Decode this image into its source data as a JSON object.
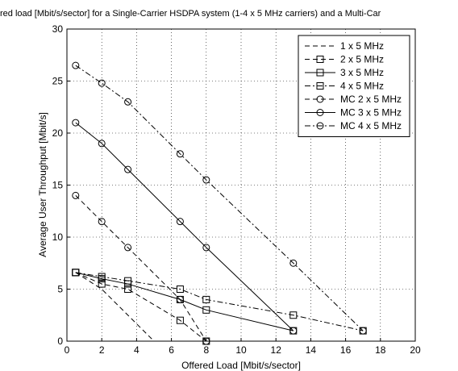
{
  "chart_data": {
    "type": "line",
    "title": "red load [Mbit/s/sector] for a Single-Carrier HSDPA system (1-4 x 5 MHz carriers) and a Multi-Car",
    "xlabel": "Offered Load [Mbit/s/sector]",
    "ylabel": "Average User Throughput [Mbit/s]",
    "xlim": [
      0,
      20
    ],
    "ylim": [
      0,
      30
    ],
    "xticks": [
      "0",
      "2",
      "4",
      "6",
      "8",
      "10",
      "12",
      "14",
      "16",
      "18",
      "20"
    ],
    "yticks": [
      "0",
      "5",
      "10",
      "15",
      "20",
      "25",
      "30"
    ],
    "grid": true,
    "legend_position": "top-right",
    "series": [
      {
        "name": "1 x 5 MHz",
        "dash": "dashed",
        "marker": "none",
        "x": [
          0.5,
          2,
          3.5,
          5
        ],
        "y": [
          6.6,
          5.0,
          2.5,
          0
        ]
      },
      {
        "name": "2 x 5 MHz",
        "dash": "dashed",
        "marker": "square",
        "x": [
          0.5,
          2,
          3.5,
          6.5,
          8
        ],
        "y": [
          6.6,
          5.5,
          5.0,
          2.0,
          0
        ]
      },
      {
        "name": "3 x 5 MHz",
        "dash": "solid",
        "marker": "square",
        "x": [
          0.5,
          2,
          3.5,
          6.5,
          8,
          13
        ],
        "y": [
          6.6,
          6.0,
          5.5,
          4.0,
          3.0,
          1.0
        ]
      },
      {
        "name": "4 x 5 MHz",
        "dash": "dashdot",
        "marker": "square",
        "x": [
          0.5,
          2,
          3.5,
          6.5,
          8,
          13,
          17
        ],
        "y": [
          6.6,
          6.2,
          5.8,
          5.0,
          4.0,
          2.5,
          1.0
        ]
      },
      {
        "name": "MC 2 x 5 MHz",
        "dash": "dashed",
        "marker": "circle",
        "x": [
          0.5,
          2,
          3.5,
          6.5,
          8
        ],
        "y": [
          14.0,
          11.5,
          9.0,
          4.0,
          0
        ]
      },
      {
        "name": "MC 3 x 5 MHz",
        "dash": "solid",
        "marker": "circle",
        "x": [
          0.5,
          2,
          3.5,
          6.5,
          8,
          13
        ],
        "y": [
          21.0,
          19.0,
          16.5,
          11.5,
          9.0,
          1.0
        ]
      },
      {
        "name": "MC 4 x 5 MHz",
        "dash": "dashdot",
        "marker": "circle",
        "x": [
          0.5,
          2,
          3.5,
          6.5,
          8,
          13,
          17
        ],
        "y": [
          26.5,
          24.8,
          23.0,
          18.0,
          15.5,
          7.5,
          1.0
        ]
      }
    ]
  }
}
